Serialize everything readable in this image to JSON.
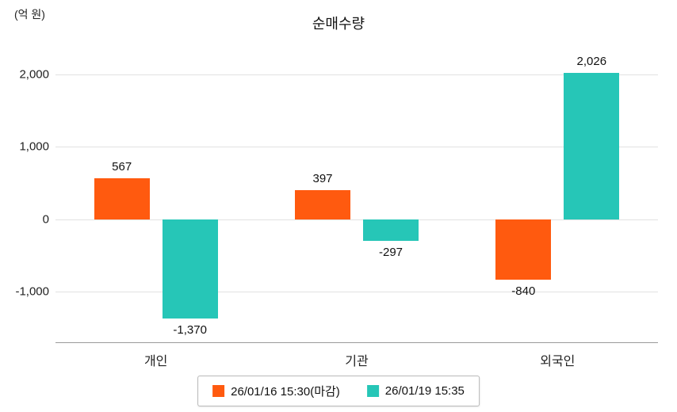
{
  "title": "순매수량",
  "unit_label": "(억 원)",
  "chart_data": {
    "type": "bar",
    "title": "순매수량",
    "ylabel": "(억 원)",
    "categories": [
      "개인",
      "기관",
      "외국인"
    ],
    "series": [
      {
        "name": "26/01/16 15:30(마감)",
        "color": "#FF5A0F",
        "values": [
          567,
          397,
          -840
        ]
      },
      {
        "name": "26/01/19 15:35",
        "color": "#26C6B7",
        "values": [
          -1370,
          -297,
          2026
        ]
      }
    ],
    "yticks": [
      2000,
      1000,
      0,
      -1000
    ],
    "ylim": [
      -1700,
      2350
    ],
    "grid": true,
    "legend_position": "bottom",
    "data_labels": [
      "567",
      "-1,370",
      "397",
      "-297",
      "-840",
      "2,026"
    ]
  }
}
